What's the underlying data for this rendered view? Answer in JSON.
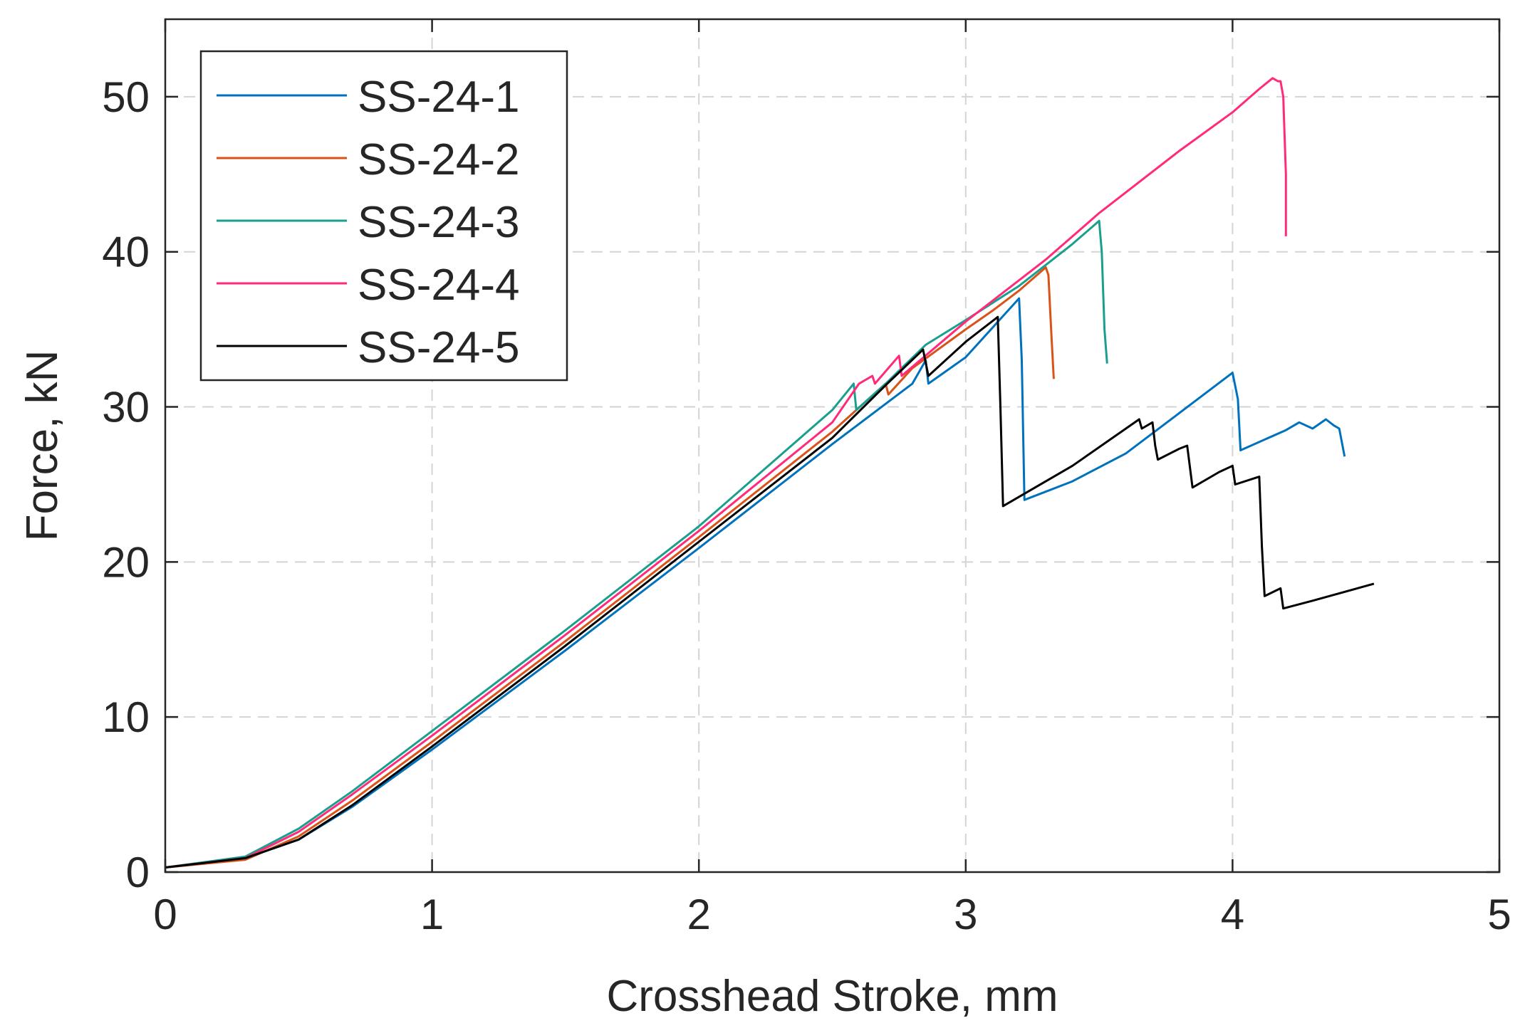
{
  "chart_data": {
    "type": "line",
    "title": "",
    "xlabel": "Crosshead Stroke, mm",
    "ylabel": "Force, kN",
    "xlim": [
      0,
      5
    ],
    "ylim": [
      0,
      55
    ],
    "xticks": [
      0,
      1,
      2,
      3,
      4,
      5
    ],
    "yticks": [
      0,
      10,
      20,
      30,
      40,
      50
    ],
    "xtick_labels": [
      "0",
      "1",
      "2",
      "3",
      "4",
      "5"
    ],
    "ytick_labels": [
      "0",
      "10",
      "20",
      "30",
      "40",
      "50"
    ],
    "grid": true,
    "legend_position": "top-left",
    "series": [
      {
        "name": "SS-24-1",
        "color": "#0072BD",
        "points": [
          [
            0,
            0.3
          ],
          [
            0.3,
            0.9
          ],
          [
            0.5,
            2.1
          ],
          [
            0.7,
            4.2
          ],
          [
            1,
            7.9
          ],
          [
            1.5,
            14.3
          ],
          [
            2,
            20.9
          ],
          [
            2.5,
            27.6
          ],
          [
            2.8,
            31.5
          ],
          [
            2.85,
            33.0
          ],
          [
            2.86,
            31.5
          ],
          [
            3.0,
            33.2
          ],
          [
            3.2,
            37.0
          ],
          [
            3.21,
            33.0
          ],
          [
            3.22,
            24.0
          ],
          [
            3.4,
            25.2
          ],
          [
            3.6,
            27.0
          ],
          [
            3.8,
            29.6
          ],
          [
            4.0,
            32.2
          ],
          [
            4.02,
            30.5
          ],
          [
            4.03,
            27.2
          ],
          [
            4.2,
            28.5
          ],
          [
            4.25,
            29.0
          ],
          [
            4.3,
            28.6
          ],
          [
            4.35,
            29.2
          ],
          [
            4.38,
            28.8
          ],
          [
            4.4,
            28.6
          ],
          [
            4.42,
            26.8
          ]
        ]
      },
      {
        "name": "SS-24-2",
        "color": "#D95319",
        "points": [
          [
            0,
            0.3
          ],
          [
            0.3,
            0.8
          ],
          [
            0.5,
            2.3
          ],
          [
            0.7,
            4.6
          ],
          [
            1,
            8.4
          ],
          [
            1.5,
            14.9
          ],
          [
            2,
            21.6
          ],
          [
            2.5,
            28.4
          ],
          [
            2.7,
            31.5
          ],
          [
            2.71,
            30.8
          ],
          [
            2.8,
            32.5
          ],
          [
            3.0,
            35.0
          ],
          [
            3.1,
            36.2
          ],
          [
            3.2,
            37.5
          ],
          [
            3.3,
            39.0
          ],
          [
            3.31,
            38.5
          ],
          [
            3.32,
            35.0
          ],
          [
            3.33,
            31.8
          ]
        ]
      },
      {
        "name": "SS-24-3",
        "color": "#1A9F8E",
        "points": [
          [
            0,
            0.3
          ],
          [
            0.3,
            1.0
          ],
          [
            0.5,
            2.8
          ],
          [
            0.7,
            5.2
          ],
          [
            1,
            9.1
          ],
          [
            1.5,
            15.6
          ],
          [
            2,
            22.3
          ],
          [
            2.5,
            29.8
          ],
          [
            2.58,
            31.5
          ],
          [
            2.59,
            29.8
          ],
          [
            2.7,
            31.5
          ],
          [
            2.85,
            34.0
          ],
          [
            3.0,
            35.6
          ],
          [
            3.2,
            37.8
          ],
          [
            3.4,
            40.5
          ],
          [
            3.5,
            42.0
          ],
          [
            3.51,
            40.0
          ],
          [
            3.52,
            35.0
          ],
          [
            3.53,
            32.8
          ]
        ]
      },
      {
        "name": "SS-24-4",
        "color": "#FF2B7A",
        "points": [
          [
            0,
            0.3
          ],
          [
            0.3,
            0.9
          ],
          [
            0.5,
            2.6
          ],
          [
            0.7,
            5.0
          ],
          [
            1,
            8.8
          ],
          [
            1.5,
            15.3
          ],
          [
            2,
            22.0
          ],
          [
            2.5,
            29.0
          ],
          [
            2.6,
            31.5
          ],
          [
            2.65,
            32.0
          ],
          [
            2.66,
            31.5
          ],
          [
            2.75,
            33.3
          ],
          [
            2.76,
            32.0
          ],
          [
            3.0,
            35.5
          ],
          [
            3.3,
            39.5
          ],
          [
            3.5,
            42.5
          ],
          [
            3.8,
            46.5
          ],
          [
            4.0,
            49.0
          ],
          [
            4.1,
            50.5
          ],
          [
            4.15,
            51.2
          ],
          [
            4.17,
            51.0
          ],
          [
            4.18,
            51.0
          ],
          [
            4.19,
            50.0
          ],
          [
            4.2,
            45.0
          ],
          [
            4.2,
            41.0
          ]
        ]
      },
      {
        "name": "SS-24-5",
        "color": "#000000",
        "points": [
          [
            0,
            0.3
          ],
          [
            0.3,
            0.9
          ],
          [
            0.5,
            2.1
          ],
          [
            0.7,
            4.3
          ],
          [
            1,
            8.1
          ],
          [
            1.5,
            14.6
          ],
          [
            2,
            21.3
          ],
          [
            2.5,
            28.0
          ],
          [
            2.7,
            31.4
          ],
          [
            2.84,
            33.7
          ],
          [
            2.86,
            32.0
          ],
          [
            3.0,
            34.2
          ],
          [
            3.12,
            35.8
          ],
          [
            3.13,
            30.0
          ],
          [
            3.14,
            23.6
          ],
          [
            3.4,
            26.2
          ],
          [
            3.65,
            29.2
          ],
          [
            3.66,
            28.6
          ],
          [
            3.7,
            29.0
          ],
          [
            3.71,
            27.5
          ],
          [
            3.72,
            26.6
          ],
          [
            3.8,
            27.3
          ],
          [
            3.83,
            27.5
          ],
          [
            3.85,
            24.8
          ],
          [
            3.95,
            25.8
          ],
          [
            4.0,
            26.2
          ],
          [
            4.01,
            25.0
          ],
          [
            4.1,
            25.5
          ],
          [
            4.11,
            21.0
          ],
          [
            4.12,
            17.8
          ],
          [
            4.18,
            18.3
          ],
          [
            4.19,
            17.0
          ],
          [
            4.3,
            17.5
          ],
          [
            4.53,
            18.6
          ]
        ]
      }
    ]
  }
}
